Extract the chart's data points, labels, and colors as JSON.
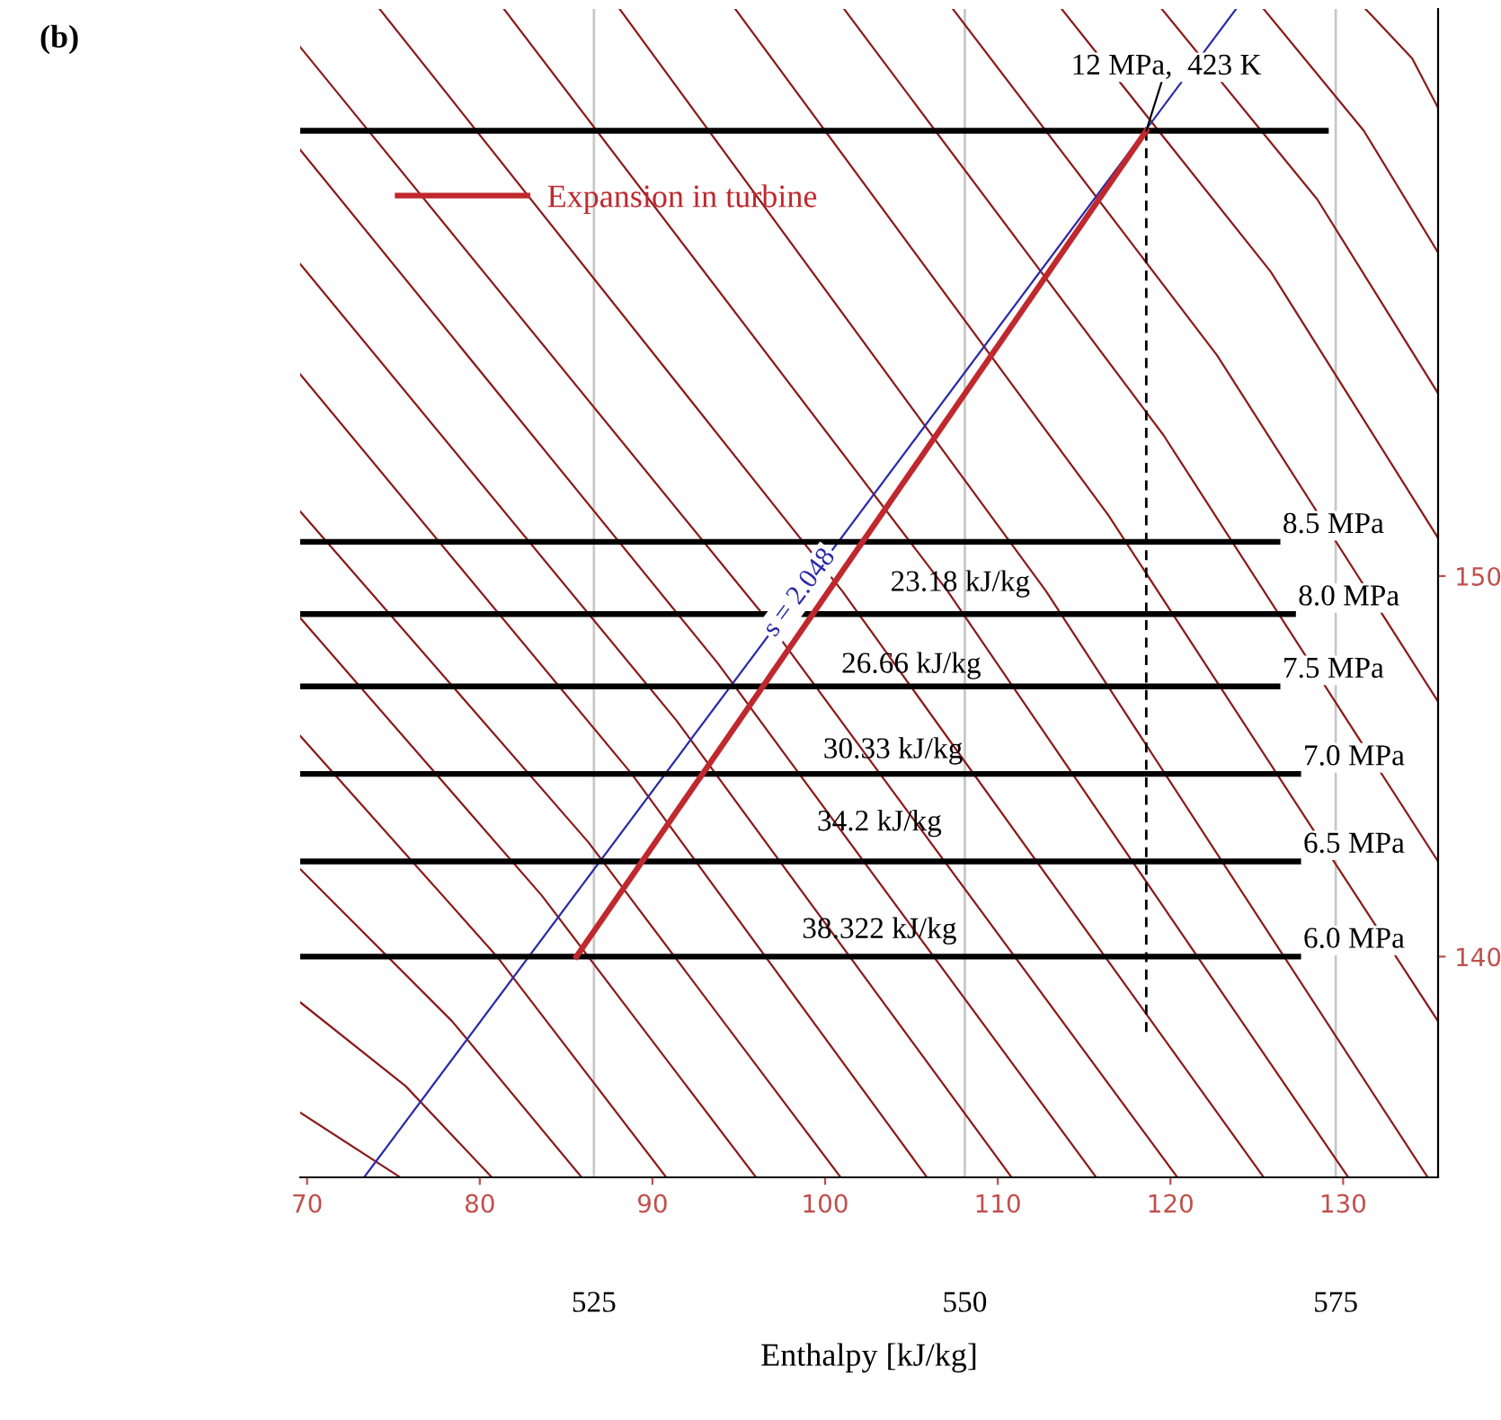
{
  "chart_data": {
    "type": "line",
    "xlabel": "Enthalpy [kJ/kg]",
    "xlim": [
      69.6,
      135.5
    ],
    "xticks": [
      70,
      80,
      90,
      100,
      110,
      120,
      130
    ],
    "x2lim": [
      505.2,
      581.9
    ],
    "x2ticks": [
      525,
      550,
      575
    ],
    "ylim": [
      134.2,
      164.9
    ],
    "yticks": [
      140,
      150
    ],
    "grid": "x",
    "legend": "top left",
    "annotations": [
      "(b)",
      {
        "text": "12 MPa,  423 K",
        "x": 118.6,
        "y": 161.7
      },
      {
        "text": "8.5 MPa",
        "x": 126.2,
        "y": 150.9
      },
      {
        "text": "8.0 MPa",
        "x": 127.1,
        "y": 149.0
      },
      {
        "text": "7.5 MPa",
        "x": 126.2,
        "y": 147.1
      },
      {
        "text": "7.0 MPa",
        "x": 127.4,
        "y": 144.8
      },
      {
        "text": "6.5 MPa",
        "x": 127.4,
        "y": 142.5
      },
      {
        "text": "6.0 MPa",
        "x": 127.4,
        "y": 140.0
      },
      "23.18 kJ/kg",
      "26.66 kJ/kg",
      "30.33 kJ/kg",
      "34.2 kJ/kg",
      "38.322 kJ/kg"
    ],
    "series": [
      {
        "color": "#8b1a1a",
        "x": [
          131.3,
          134.0,
          135.5
        ],
        "values": [
          164.9,
          163.6,
          162.3
        ]
      },
      {
        "color": "#8b1a1a",
        "x": [
          125.4,
          131.2,
          135.5
        ],
        "values": [
          164.9,
          161.7,
          158.5
        ]
      },
      {
        "color": "#8b1a1a",
        "x": [
          119.5,
          128.5,
          135.5
        ],
        "values": [
          164.9,
          159.9,
          154.8
        ]
      },
      {
        "color": "#8b1a1a",
        "x": [
          113.7,
          125.8,
          135.5
        ],
        "values": [
          164.9,
          158.0,
          151.0
        ]
      },
      {
        "color": "#8b1a1a",
        "x": [
          107.4,
          122.7,
          135.5
        ],
        "values": [
          164.9,
          155.8,
          146.7
        ]
      },
      {
        "color": "#8b1a1a",
        "x": [
          101.1,
          119.6,
          135.5
        ],
        "values": [
          164.9,
          153.7,
          142.5
        ]
      },
      {
        "color": "#8b1a1a",
        "x": [
          94.8,
          116.4,
          135.5
        ],
        "values": [
          164.9,
          151.6,
          138.3
        ]
      },
      {
        "color": "#8b1a1a",
        "x": [
          88.1,
          112.8,
          134.9
        ],
        "values": [
          164.9,
          149.6,
          134.2
        ]
      },
      {
        "color": "#8b1a1a",
        "x": [
          81.4,
          107.1,
          130.3
        ],
        "values": [
          164.9,
          149.6,
          134.2
        ]
      },
      {
        "color": "#8b1a1a",
        "x": [
          74.2,
          101.0,
          125.4
        ],
        "values": [
          164.9,
          149.6,
          134.2
        ]
      },
      {
        "color": "#8b1a1a",
        "x": [
          69.6,
          96.2,
          120.4
        ],
        "values": [
          163.9,
          149.1,
          134.2
        ]
      },
      {
        "color": "#8b1a1a",
        "x": [
          69.6,
          93.8,
          115.7
        ],
        "values": [
          161.2,
          147.7,
          134.2
        ]
      },
      {
        "color": "#8b1a1a",
        "x": [
          69.6,
          91.4,
          110.8
        ],
        "values": [
          158.2,
          146.2,
          134.2
        ]
      },
      {
        "color": "#8b1a1a",
        "x": [
          69.6,
          88.8,
          105.9
        ],
        "values": [
          155.3,
          144.8,
          134.2
        ]
      },
      {
        "color": "#8b1a1a",
        "x": [
          69.6,
          86.3,
          100.9
        ],
        "values": [
          151.7,
          143.0,
          134.2
        ]
      },
      {
        "color": "#8b1a1a",
        "x": [
          69.6,
          83.6,
          96.0
        ],
        "values": [
          148.9,
          141.6,
          134.2
        ]
      },
      {
        "color": "#8b1a1a",
        "x": [
          69.6,
          81.0,
          90.8
        ],
        "values": [
          145.8,
          140.0,
          134.2
        ]
      },
      {
        "color": "#8b1a1a",
        "x": [
          69.6,
          78.4,
          85.9
        ],
        "values": [
          142.3,
          138.3,
          134.2
        ]
      },
      {
        "color": "#8b1a1a",
        "x": [
          69.6,
          75.7,
          80.7
        ],
        "values": [
          138.8,
          136.6,
          134.2
        ]
      },
      {
        "color": "#8b1a1a",
        "x": [
          69.6,
          75.4
        ],
        "values": [
          135.9,
          134.2
        ]
      },
      {
        "color": "#000000",
        "x": [
          69.6,
          129.0
        ],
        "values": [
          161.7,
          161.7
        ]
      },
      {
        "color": "#000000",
        "x": [
          69.6,
          126.2
        ],
        "values": [
          150.9,
          150.9
        ]
      },
      {
        "color": "#000000",
        "x": [
          69.6,
          127.1
        ],
        "values": [
          149.0,
          149.0
        ]
      },
      {
        "color": "#000000",
        "x": [
          69.6,
          126.2
        ],
        "values": [
          147.1,
          147.1
        ]
      },
      {
        "color": "#000000",
        "x": [
          69.6,
          127.4
        ],
        "values": [
          144.8,
          144.8
        ]
      },
      {
        "color": "#000000",
        "x": [
          69.6,
          127.4
        ],
        "values": [
          142.5,
          142.5
        ]
      },
      {
        "color": "#000000",
        "x": [
          69.6,
          127.4
        ],
        "values": [
          140.0,
          140.0
        ]
      },
      {
        "color": "#000000",
        "line_style": "dashed",
        "x": [
          118.6,
          118.6
        ],
        "values": [
          161.7,
          138.0
        ]
      },
      {
        "name": "s = 2.048",
        "color": "#2a2aa8",
        "x": [
          73.3,
          123.8
        ],
        "values": [
          134.2,
          164.9
        ]
      },
      {
        "name": "Expansion in turbine",
        "color": "#c0282d",
        "x": [
          85.6,
          118.6
        ],
        "values": [
          140.0,
          161.7
        ]
      }
    ]
  }
}
